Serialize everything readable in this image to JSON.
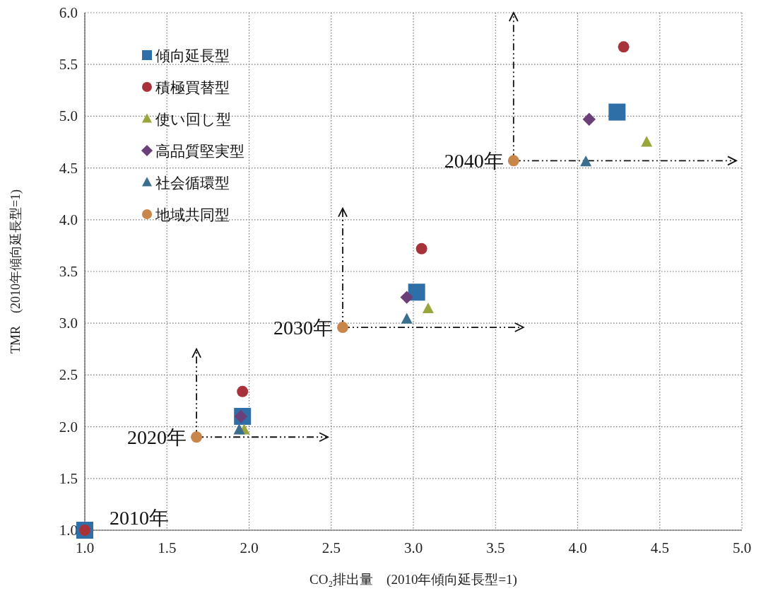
{
  "chart_data": {
    "type": "scatter",
    "xlabel": "CO₂排出量　(2010年傾向延長型=1)",
    "ylabel": "TMR　(2010年傾向延長型=1)",
    "xlim": [
      1.0,
      5.0
    ],
    "ylim": [
      1.0,
      6.0
    ],
    "xticks": [
      {
        "value": 1,
        "label": "1.0"
      },
      {
        "value": 1.5,
        "label": "1.5"
      },
      {
        "value": 2,
        "label": "2.0"
      },
      {
        "value": 2.5,
        "label": "2.5"
      },
      {
        "value": 3,
        "label": "3.0"
      },
      {
        "value": 3.5,
        "label": "3.5"
      },
      {
        "value": 4,
        "label": "4.0"
      },
      {
        "value": 4.5,
        "label": "4.5"
      },
      {
        "value": 5,
        "label": "5.0"
      }
    ],
    "yticks": [
      {
        "value": 1,
        "label": "1.0"
      },
      {
        "value": 1.5,
        "label": "1.5"
      },
      {
        "value": 2,
        "label": "2.0"
      },
      {
        "value": 2.5,
        "label": "2.5"
      },
      {
        "value": 3,
        "label": "3.0"
      },
      {
        "value": 3.5,
        "label": "3.5"
      },
      {
        "value": 4,
        "label": "4.0"
      },
      {
        "value": 4.5,
        "label": "4.5"
      },
      {
        "value": 5,
        "label": "5.0"
      },
      {
        "value": 5.5,
        "label": "5.5"
      },
      {
        "value": 6,
        "label": "6.0"
      }
    ],
    "grid": true,
    "legend": "top left",
    "series": [
      {
        "name": "傾向延長型",
        "color": "#2f6fa8",
        "marker": "square",
        "x": [
          1.0,
          1.96,
          3.02,
          4.24
        ],
        "values": [
          1.0,
          2.1,
          3.3,
          5.04
        ]
      },
      {
        "name": "積極買替型",
        "color": "#a8323a",
        "marker": "circle",
        "x": [
          1.0,
          1.96,
          3.05,
          4.28
        ],
        "values": [
          1.0,
          2.34,
          3.72,
          5.67
        ]
      },
      {
        "name": "使い回し型",
        "color": "#9aa63c",
        "marker": "triangle",
        "x": [
          1.97,
          3.09,
          4.42
        ],
        "values": [
          1.97,
          3.14,
          4.75
        ]
      },
      {
        "name": "高品質堅実型",
        "color": "#6b3f7a",
        "marker": "diamond",
        "x": [
          1.95,
          2.96,
          4.07
        ],
        "values": [
          2.1,
          3.25,
          4.97
        ]
      },
      {
        "name": "社会循環型",
        "color": "#3a6f8f",
        "marker": "triangle",
        "x": [
          1.94,
          2.96,
          4.05
        ],
        "values": [
          1.97,
          3.04,
          4.56
        ]
      },
      {
        "name": "地域共同型",
        "color": "#c8864a",
        "marker": "circle",
        "x": [
          1.68,
          2.57,
          3.61
        ],
        "values": [
          1.9,
          2.96,
          4.57
        ]
      }
    ],
    "annotations": [
      {
        "text": "2010年",
        "x": 1.0,
        "y": 1.0
      },
      {
        "text": "2020年",
        "x": 1.68,
        "y": 1.9
      },
      {
        "text": "2030年",
        "x": 2.57,
        "y": 2.96
      },
      {
        "text": "2040年",
        "x": 3.61,
        "y": 4.57
      }
    ]
  }
}
